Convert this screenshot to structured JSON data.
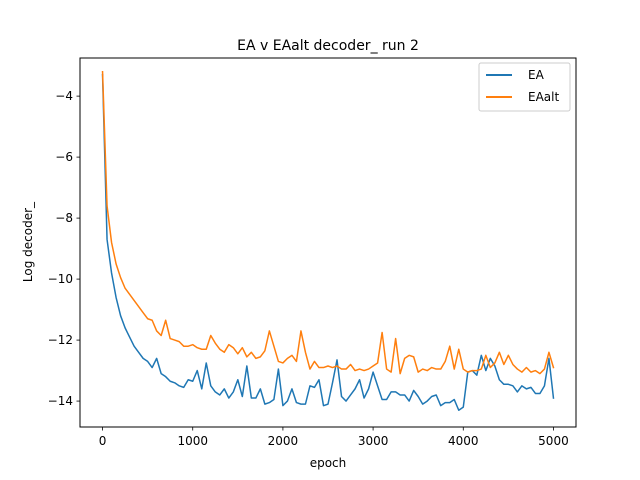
{
  "chart_data": {
    "type": "line",
    "title": "EA v EAalt decoder_ run 2",
    "xlabel": "epoch",
    "ylabel": "Log decoder_",
    "xlim": [
      -250,
      5250
    ],
    "ylim": [
      -14.85,
      -2.75
    ],
    "x_ticks": [
      0,
      1000,
      2000,
      3000,
      4000,
      5000
    ],
    "x_tick_labels": [
      "0",
      "1000",
      "2000",
      "3000",
      "4000",
      "5000"
    ],
    "y_ticks": [
      -14,
      -12,
      -10,
      -8,
      -6,
      -4
    ],
    "y_tick_labels": [
      "−14",
      "−12",
      "−10",
      "−8",
      "−6",
      "−4"
    ],
    "grid": false,
    "legend_position": "top-right",
    "x": [
      0,
      50,
      100,
      150,
      200,
      250,
      300,
      350,
      400,
      450,
      500,
      550,
      600,
      650,
      700,
      750,
      800,
      850,
      900,
      950,
      1000,
      1050,
      1100,
      1150,
      1200,
      1250,
      1300,
      1350,
      1400,
      1450,
      1500,
      1550,
      1600,
      1650,
      1700,
      1750,
      1800,
      1850,
      1900,
      1950,
      2000,
      2050,
      2100,
      2150,
      2200,
      2250,
      2300,
      2350,
      2400,
      2450,
      2500,
      2550,
      2600,
      2650,
      2700,
      2750,
      2800,
      2850,
      2900,
      2950,
      3000,
      3050,
      3100,
      3150,
      3200,
      3250,
      3300,
      3350,
      3400,
      3450,
      3500,
      3550,
      3600,
      3650,
      3700,
      3750,
      3800,
      3850,
      3900,
      3950,
      4000,
      4050,
      4100,
      4150,
      4200,
      4250,
      4300,
      4350,
      4400,
      4450,
      4500,
      4550,
      4600,
      4650,
      4700,
      4750,
      4800,
      4850,
      4900,
      4950,
      5000
    ],
    "series": [
      {
        "name": "EA",
        "color": "#1f77b4",
        "values": [
          -3.3,
          -8.7,
          -9.8,
          -10.6,
          -11.2,
          -11.6,
          -11.9,
          -12.2,
          -12.4,
          -12.6,
          -12.7,
          -12.9,
          -12.6,
          -13.1,
          -13.2,
          -13.35,
          -13.4,
          -13.5,
          -13.55,
          -13.3,
          -13.35,
          -13.0,
          -13.6,
          -12.75,
          -13.5,
          -13.7,
          -13.8,
          -13.6,
          -13.9,
          -13.7,
          -13.3,
          -13.85,
          -12.85,
          -13.9,
          -13.9,
          -13.6,
          -14.1,
          -14.05,
          -13.95,
          -12.95,
          -14.15,
          -14.0,
          -13.6,
          -14.05,
          -14.1,
          -14.1,
          -13.5,
          -13.55,
          -13.3,
          -14.15,
          -14.1,
          -13.4,
          -12.65,
          -13.85,
          -14.0,
          -13.8,
          -13.6,
          -13.3,
          -13.9,
          -13.6,
          -13.05,
          -13.5,
          -13.95,
          -13.95,
          -13.7,
          -13.7,
          -13.8,
          -13.8,
          -14.0,
          -13.65,
          -13.85,
          -14.1,
          -14.0,
          -13.85,
          -13.8,
          -14.15,
          -14.05,
          -14.05,
          -13.95,
          -14.3,
          -14.2,
          -13.05,
          -13.0,
          -13.15,
          -12.5,
          -13.0,
          -12.6,
          -12.85,
          -13.3,
          -13.45,
          -13.45,
          -13.5,
          -13.7,
          -13.5,
          -13.6,
          -13.55,
          -13.75,
          -13.75,
          -13.5,
          -12.6,
          -13.9
        ]
      },
      {
        "name": "EAalt",
        "color": "#ff7f0e",
        "values": [
          -3.2,
          -7.6,
          -8.8,
          -9.5,
          -9.95,
          -10.3,
          -10.5,
          -10.7,
          -10.9,
          -11.1,
          -11.3,
          -11.35,
          -11.7,
          -11.85,
          -11.35,
          -11.95,
          -12.0,
          -12.05,
          -12.2,
          -12.2,
          -12.15,
          -12.25,
          -12.3,
          -12.3,
          -11.85,
          -12.1,
          -12.3,
          -12.4,
          -12.15,
          -12.25,
          -12.45,
          -12.25,
          -12.55,
          -12.4,
          -12.6,
          -12.55,
          -12.35,
          -11.7,
          -12.2,
          -12.7,
          -12.75,
          -12.6,
          -12.5,
          -12.7,
          -11.7,
          -12.4,
          -12.95,
          -12.7,
          -12.9,
          -12.9,
          -12.85,
          -12.9,
          -12.85,
          -12.95,
          -12.95,
          -12.8,
          -13.0,
          -12.95,
          -13.0,
          -12.95,
          -12.85,
          -12.75,
          -11.75,
          -12.95,
          -13.05,
          -11.95,
          -13.1,
          -12.6,
          -12.5,
          -12.55,
          -13.05,
          -12.95,
          -13.0,
          -12.9,
          -12.95,
          -12.95,
          -12.7,
          -12.2,
          -12.95,
          -12.3,
          -12.95,
          -13.05,
          -13.0,
          -13.0,
          -12.95,
          -12.5,
          -12.9,
          -12.75,
          -12.4,
          -12.8,
          -12.5,
          -12.8,
          -12.95,
          -13.05,
          -12.9,
          -13.05,
          -13.0,
          -13.1,
          -12.95,
          -12.4,
          -12.9
        ]
      }
    ]
  }
}
